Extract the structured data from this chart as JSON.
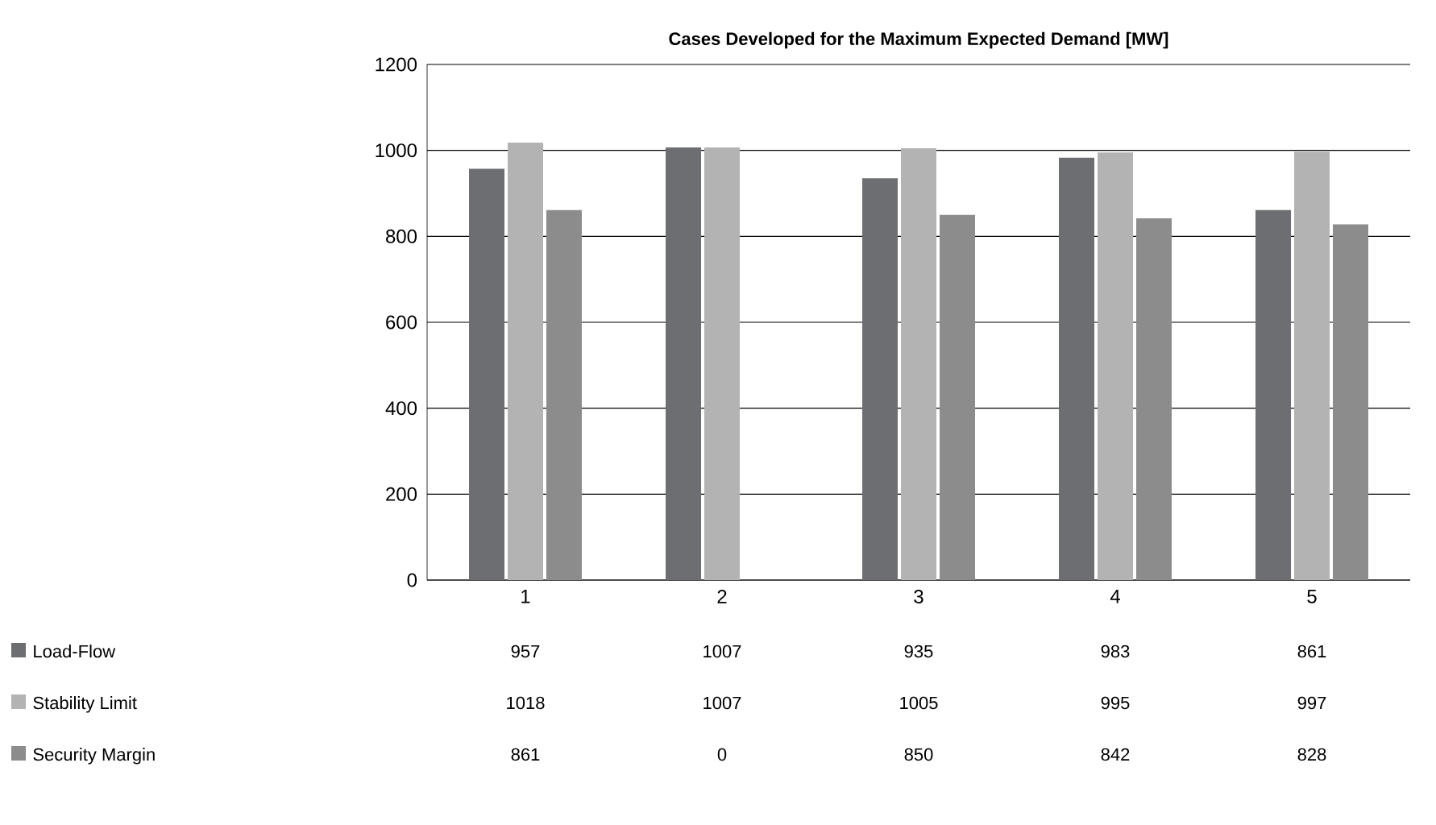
{
  "chart_data": {
    "type": "bar",
    "title": "Cases Developed for the Maximum Expected Demand [MW]",
    "categories": [
      "1",
      "2",
      "3",
      "4",
      "5"
    ],
    "series": [
      {
        "name": "Load-Flow",
        "color": "#6d6e71",
        "values": [
          957,
          1007,
          935,
          983,
          861
        ]
      },
      {
        "name": "Stability Limit",
        "color": "#b3b3b3",
        "values": [
          1018,
          1007,
          1005,
          995,
          997
        ]
      },
      {
        "name": "Security Margin",
        "color": "#8c8c8c",
        "values": [
          861,
          0,
          850,
          842,
          828
        ]
      }
    ],
    "ylim": [
      0,
      1200
    ],
    "yticks": [
      0,
      200,
      400,
      600,
      800,
      1000,
      1200
    ],
    "grid": "y",
    "legend": "bottom",
    "data_labels": true
  }
}
